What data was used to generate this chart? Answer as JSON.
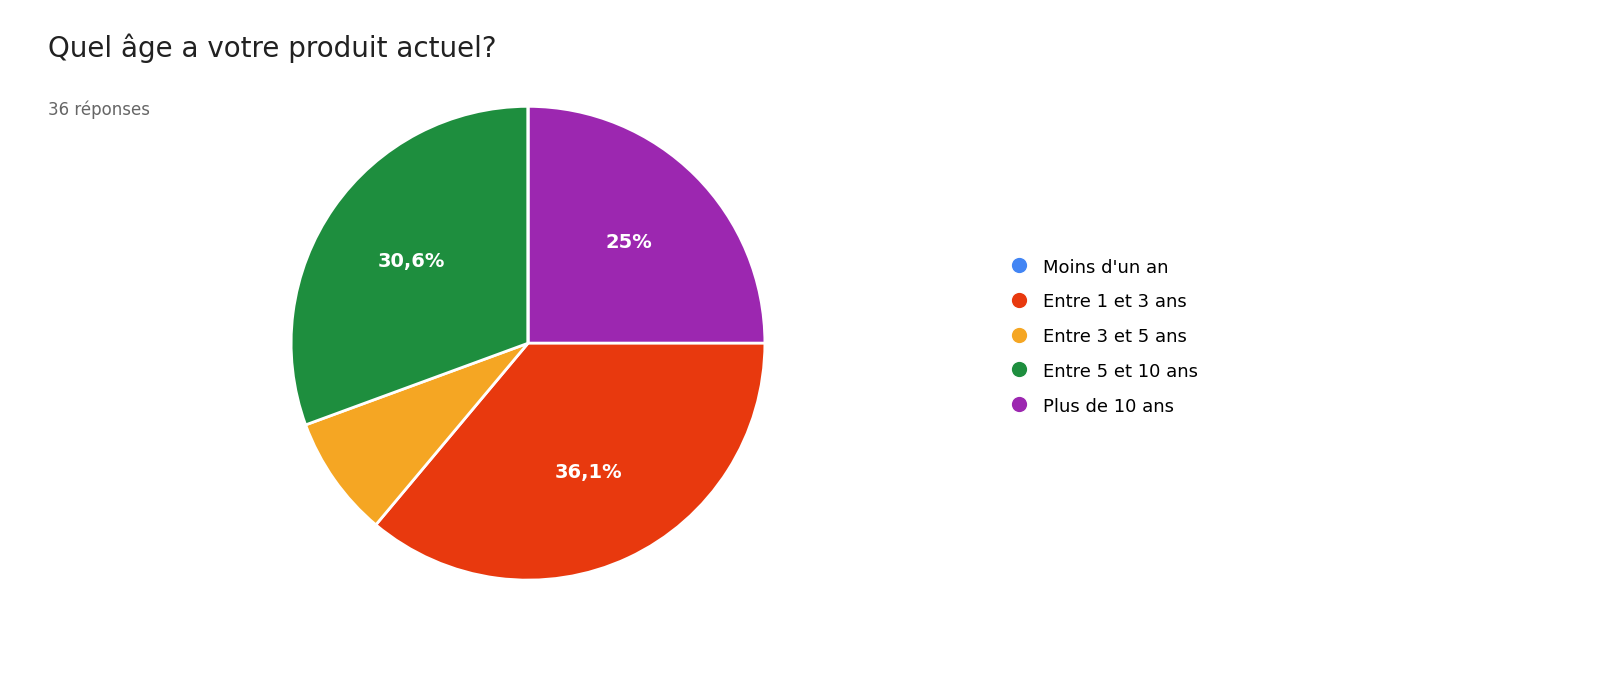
{
  "title": "Quel âge a votre produit actuel?",
  "subtitle": "36 réponses",
  "labels": [
    "Moins d'un an",
    "Entre 1 et 3 ans",
    "Entre 3 et 5 ans",
    "Entre 5 et 10 ans",
    "Plus de 10 ans"
  ],
  "values": [
    0.0,
    36.1,
    8.3,
    30.6,
    25.0
  ],
  "colors": [
    "#4285F4",
    "#E8390E",
    "#F5A623",
    "#1E8E3E",
    "#9C27B0"
  ],
  "autopct_labels": [
    "",
    "36,1%",
    "",
    "30,6%",
    "25%"
  ],
  "background_color": "#ffffff",
  "title_fontsize": 20,
  "subtitle_fontsize": 12,
  "legend_fontsize": 13,
  "wedge_label_fontsize": 14,
  "startangle": 90
}
